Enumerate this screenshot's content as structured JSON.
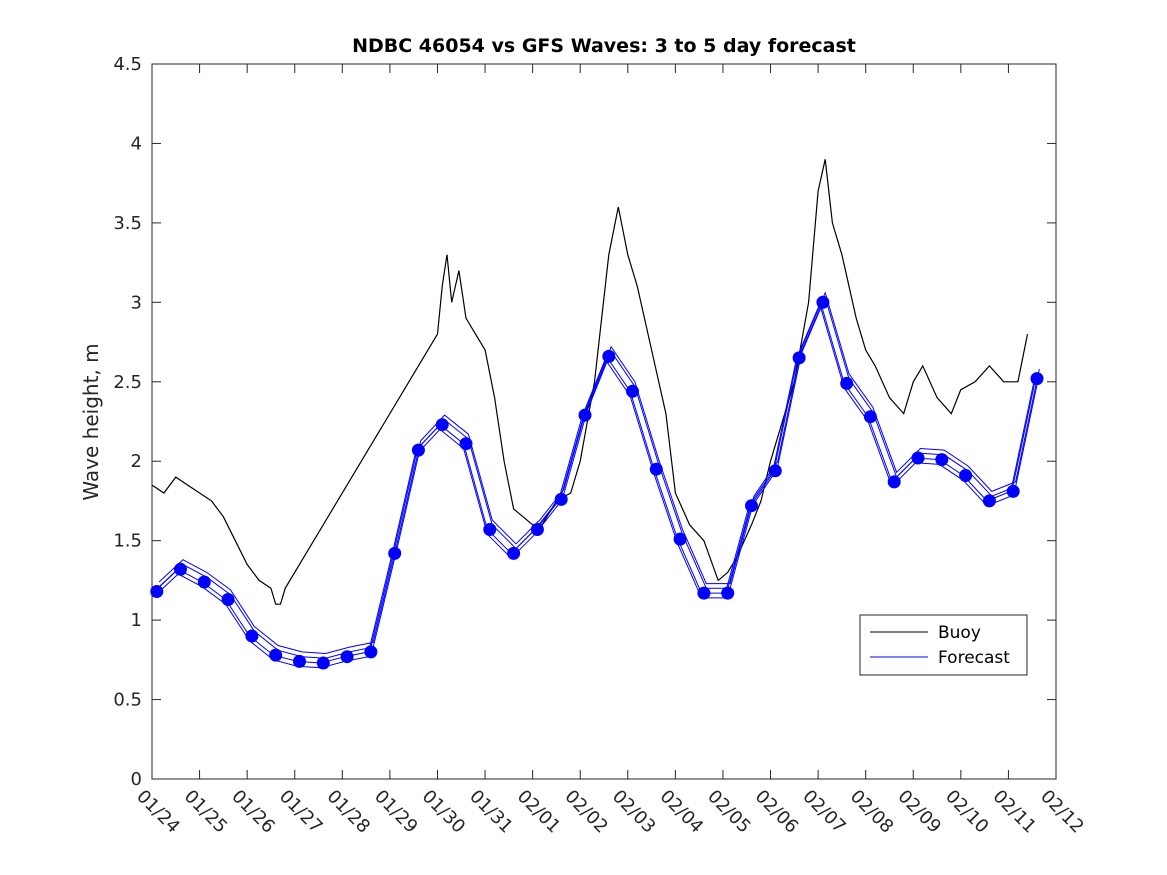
{
  "chart_data": {
    "type": "line",
    "title": "NDBC 46054 vs GFS Waves: 3 to 5 day forecast",
    "xlabel": "",
    "ylabel": "Wave height, m",
    "xlim": [
      0,
      19
    ],
    "ylim": [
      0,
      4.5
    ],
    "x_tick_labels": [
      "01/24",
      "01/25",
      "01/26",
      "01/27",
      "01/28",
      "01/29",
      "01/30",
      "01/31",
      "02/01",
      "02/02",
      "02/03",
      "02/04",
      "02/05",
      "02/06",
      "02/07",
      "02/08",
      "02/09",
      "02/10",
      "02/11",
      "02/12"
    ],
    "y_ticks": [
      0,
      0.5,
      1,
      1.5,
      2,
      2.5,
      3,
      3.5,
      4,
      4.5
    ],
    "y_tick_labels": [
      "0",
      "0.5",
      "1",
      "1.5",
      "2",
      "2.5",
      "3",
      "3.5",
      "4",
      "4.5"
    ],
    "legend": {
      "position": "lower-right",
      "entries": [
        "Buoy",
        "Forecast"
      ]
    },
    "colors": {
      "buoy": "#000000",
      "forecast": "#0000ff",
      "axis": "#262626"
    },
    "series": [
      {
        "name": "Buoy",
        "x": [
          0.0,
          0.25,
          0.5,
          0.75,
          1.0,
          1.25,
          1.5,
          1.75,
          2.0,
          2.25,
          2.5,
          2.6,
          2.7,
          2.8,
          3.0,
          6.0,
          6.1,
          6.2,
          6.3,
          6.45,
          6.6,
          6.8,
          7.0,
          7.2,
          7.4,
          7.6,
          7.8,
          8.0,
          8.2,
          8.5,
          8.8,
          9.0,
          9.3,
          9.6,
          9.8,
          10.0,
          10.2,
          10.5,
          10.8,
          11.0,
          11.3,
          11.6,
          11.9,
          12.1,
          12.3,
          12.6,
          12.8,
          13.0,
          13.2,
          13.5,
          13.8,
          14.0,
          14.15,
          14.3,
          14.5,
          14.8,
          15.0,
          15.2,
          15.5,
          15.8,
          16.0,
          16.2,
          16.5,
          16.8,
          17.0,
          17.3,
          17.6,
          17.9,
          18.2,
          18.4
        ],
        "values": [
          1.85,
          1.8,
          1.9,
          1.85,
          1.8,
          1.75,
          1.65,
          1.5,
          1.35,
          1.25,
          1.2,
          1.1,
          1.1,
          1.2,
          1.3,
          2.8,
          3.1,
          3.3,
          3.0,
          3.2,
          2.9,
          2.8,
          2.7,
          2.4,
          2.0,
          1.7,
          1.65,
          1.6,
          1.6,
          1.75,
          1.8,
          2.0,
          2.5,
          3.3,
          3.6,
          3.3,
          3.1,
          2.7,
          2.3,
          1.8,
          1.6,
          1.5,
          1.25,
          1.3,
          1.4,
          1.6,
          1.75,
          2.0,
          2.2,
          2.5,
          3.0,
          3.7,
          3.9,
          3.5,
          3.3,
          2.9,
          2.7,
          2.6,
          2.4,
          2.3,
          2.5,
          2.6,
          2.4,
          2.3,
          2.45,
          2.5,
          2.6,
          2.5,
          2.5,
          2.8
        ]
      },
      {
        "name": "Forecast",
        "x": [
          0.1,
          0.6,
          1.1,
          1.6,
          2.1,
          2.6,
          3.1,
          3.6,
          4.1,
          4.6,
          5.1,
          5.6,
          6.1,
          6.6,
          7.1,
          7.6,
          8.1,
          8.6,
          9.1,
          9.6,
          10.1,
          10.6,
          11.1,
          11.6,
          12.1,
          12.6,
          13.1,
          13.6,
          14.1,
          14.6,
          15.1,
          15.6,
          16.1,
          16.6,
          17.1,
          17.6,
          18.1,
          18.6
        ],
        "values": [
          1.18,
          1.32,
          1.24,
          1.13,
          0.9,
          0.78,
          0.74,
          0.73,
          0.77,
          0.8,
          1.42,
          2.07,
          2.23,
          2.11,
          1.57,
          1.42,
          1.57,
          1.76,
          2.29,
          2.66,
          2.44,
          1.95,
          1.51,
          1.17,
          1.17,
          1.72,
          1.94,
          2.65,
          3.0,
          2.49,
          2.28,
          1.87,
          2.02,
          2.01,
          1.91,
          1.75,
          1.81,
          2.52
        ]
      }
    ]
  }
}
